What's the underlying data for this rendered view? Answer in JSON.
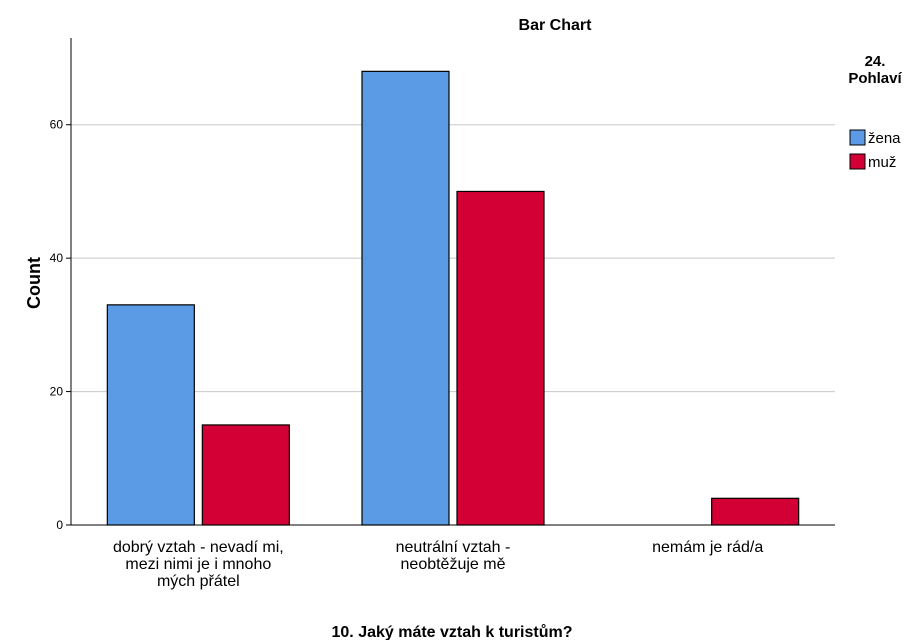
{
  "chart_data": {
    "type": "bar",
    "title": "Bar Chart",
    "xlabel": "10. Jaký máte vztah k turistům?",
    "ylabel": "Count",
    "categories": [
      [
        "dobrý vztah - nevadí mi,",
        "mezi nimi je i mnoho",
        "mých přátel"
      ],
      [
        "neutrální vztah -",
        "neobtěžuje mě"
      ],
      [
        "nemám je rád/a"
      ]
    ],
    "series": [
      {
        "name": "žena",
        "color": "#5b9be6",
        "values": [
          33,
          68,
          0
        ]
      },
      {
        "name": "muž",
        "color": "#d30035",
        "values": [
          15,
          50,
          4
        ]
      }
    ],
    "ylim": [
      0,
      73
    ],
    "yticks": [
      0,
      20,
      40,
      60
    ],
    "grid": true,
    "legend": {
      "title": [
        "24.",
        "Pohlaví"
      ],
      "position": "right"
    }
  }
}
